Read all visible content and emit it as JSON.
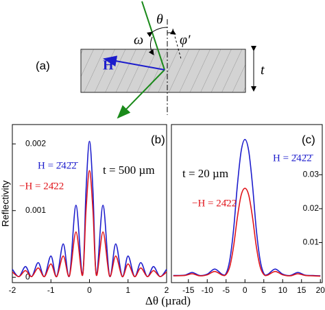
{
  "diagram": {
    "panel_label": "(a)",
    "H": "H",
    "theta": "θ",
    "omega": "ω",
    "phi": "φ′",
    "t": "t"
  },
  "chart_data": [
    {
      "type": "line",
      "panel_label": "(b)",
      "annotation": "t = 500 µm",
      "ylabel": "Reflectivity",
      "xlabel": "Δθ (µrad)",
      "xlim": [
        -2,
        2
      ],
      "xticks": [
        -2,
        -1,
        0,
        1,
        2
      ],
      "ylim": [
        -8e-05,
        0.00229
      ],
      "yticks": [
        0,
        0.001,
        0.002
      ],
      "x": [
        -2,
        -1.83,
        -1.66,
        -1.5,
        -1.33,
        -1.17,
        -1,
        -0.85,
        -0.68,
        -0.52,
        -0.35,
        -0.18,
        -0.09,
        0,
        0.09,
        0.18,
        0.35,
        0.52,
        0.68,
        0.85,
        1,
        1.17,
        1.33,
        1.5,
        1.66,
        1.83,
        2
      ],
      "series": [
        {
          "name": "H = 2̄42̄2̄",
          "color": "#1c1ccc",
          "values": [
            0.00012,
            1e-05,
            0.00016,
            1e-05,
            0.00022,
            1e-05,
            0.00032,
            1e-05,
            0.0005,
            2e-05,
            0.00108,
            3e-05,
            0.0013,
            0.00204,
            0.0013,
            3e-05,
            0.00108,
            2e-05,
            0.0005,
            1e-05,
            0.00032,
            1e-05,
            0.00022,
            1e-05,
            0.00016,
            1e-05,
            0.00012
          ]
        },
        {
          "name": "−H = 24̄22",
          "color": "#e0141a",
          "values": [
            8e-05,
            1e-05,
            0.0001,
            1e-05,
            0.00014,
            1e-05,
            0.0002,
            1e-05,
            0.00032,
            2e-05,
            0.00068,
            3e-05,
            0.001,
            0.0016,
            0.001,
            3e-05,
            0.00068,
            2e-05,
            0.00032,
            1e-05,
            0.0002,
            1e-05,
            0.00014,
            1e-05,
            0.0001,
            1e-05,
            8e-05
          ]
        }
      ]
    },
    {
      "type": "line",
      "panel_label": "(c)",
      "annotation": "t = 20 µm",
      "xlim": [
        -19.5,
        20.5
      ],
      "xticks": [
        -15,
        -10,
        -5,
        0,
        5,
        10,
        15,
        20
      ],
      "ylim": [
        -0.0018,
        0.0448
      ],
      "yticks": [
        0.01,
        0.02,
        0.03
      ],
      "x": [
        -19,
        -16,
        -14,
        -12,
        -10,
        -8,
        -6,
        -5,
        -4,
        -3,
        -2,
        -1,
        0,
        1,
        2,
        3,
        4,
        5,
        6,
        8,
        10,
        12,
        14,
        16,
        18,
        20
      ],
      "series": [
        {
          "name": "H = 2̄42̄2̄",
          "color": "#1c1ccc",
          "values": [
            0.0003,
            0.0004,
            0.0012,
            0.0003,
            0.0007,
            0.0022,
            0.0006,
            0.0009,
            0.005,
            0.014,
            0.027,
            0.037,
            0.0404,
            0.037,
            0.027,
            0.014,
            0.005,
            0.0009,
            0.0006,
            0.0022,
            0.0007,
            0.0003,
            0.0012,
            0.0004,
            0.0003,
            0.0002
          ]
        },
        {
          "name": "−H = 24̄22",
          "color": "#e0141a",
          "values": [
            0.0002,
            0.0003,
            0.0008,
            0.0002,
            0.0005,
            0.0015,
            0.0004,
            0.0006,
            0.003,
            0.009,
            0.0175,
            0.024,
            0.026,
            0.024,
            0.0175,
            0.009,
            0.003,
            0.0006,
            0.0004,
            0.0015,
            0.0005,
            0.0002,
            0.0008,
            0.0003,
            0.0002,
            0.0001
          ]
        }
      ]
    }
  ]
}
